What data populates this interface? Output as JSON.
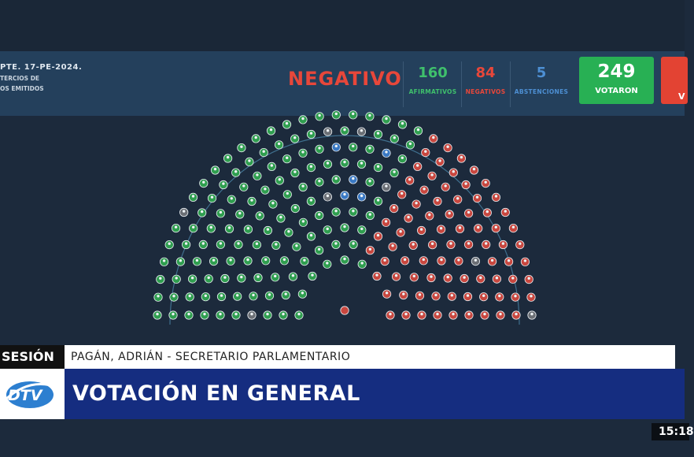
{
  "vote_banner": {
    "expediente": "PTE. 17-PE-2024.",
    "line2": "TERCIOS DE",
    "line3": "OS EMITIDOS",
    "result": "NEGATIVO",
    "afirmativos": {
      "value": "160",
      "label": "AFIRMATIVOS"
    },
    "negativos": {
      "value": "84",
      "label": "NEGATIVOS"
    },
    "abstenciones": {
      "value": "5",
      "label": "ABSTENCIONES"
    },
    "votaron": {
      "value": "249",
      "label": "VOTARON"
    },
    "cut_box_text": "V"
  },
  "hemicycle": {
    "seat_counts": {
      "afirmativo": 160,
      "negativo": 84,
      "abstencion": 5,
      "ausente": 8
    },
    "colors": {
      "afirmativo": "#2f9e4f",
      "negativo": "#c8473f",
      "abstencion": "#3a79c4",
      "ausente": "#6b6f75",
      "presidencia": "#c8473f"
    }
  },
  "lower_third": {
    "label": "SESIÓN",
    "speaker": "PAGÁN, ADRIÁN - SECRETARIO PARLAMENTARIO",
    "title": "VOTACIÓN EN GENERAL",
    "logo_text": "DTV"
  },
  "clock": "15:18",
  "colors": {
    "background": "#1c2a3c",
    "banner": "#24405c",
    "green": "#28b054",
    "red": "#e34333",
    "title_bar": "#152d80"
  }
}
